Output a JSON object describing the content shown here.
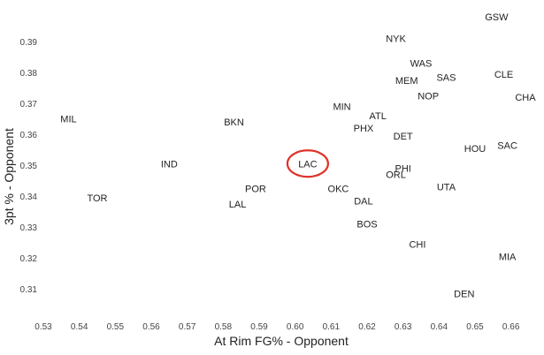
{
  "chart_data": {
    "type": "scatter",
    "xlabel": "At Rim FG% - Opponent",
    "ylabel": "3pt % - Opponent",
    "xlim": [
      0.53,
      0.665
    ],
    "ylim": [
      0.302,
      0.402
    ],
    "grid": false,
    "x_ticks": [
      "0.53",
      "0.54",
      "0.55",
      "0.56",
      "0.57",
      "0.58",
      "0.59",
      "0.60",
      "0.61",
      "0.62",
      "0.63",
      "0.64",
      "0.65",
      "0.66"
    ],
    "y_ticks": [
      "0.31",
      "0.32",
      "0.33",
      "0.34",
      "0.35",
      "0.36",
      "0.37",
      "0.38",
      "0.39"
    ],
    "highlight": {
      "label": "LAC",
      "color": "#e0332a"
    },
    "points": [
      {
        "label": "GSW",
        "x": 0.656,
        "y": 0.398
      },
      {
        "label": "NYK",
        "x": 0.628,
        "y": 0.391
      },
      {
        "label": "WAS",
        "x": 0.635,
        "y": 0.383
      },
      {
        "label": "SAS",
        "x": 0.642,
        "y": 0.3785
      },
      {
        "label": "CLE",
        "x": 0.658,
        "y": 0.3795
      },
      {
        "label": "MEM",
        "x": 0.631,
        "y": 0.3775
      },
      {
        "label": "NOP",
        "x": 0.637,
        "y": 0.3725
      },
      {
        "label": "CHA",
        "x": 0.664,
        "y": 0.372
      },
      {
        "label": "MIN",
        "x": 0.613,
        "y": 0.369
      },
      {
        "label": "ATL",
        "x": 0.623,
        "y": 0.366
      },
      {
        "label": "MIL",
        "x": 0.537,
        "y": 0.365
      },
      {
        "label": "BKN",
        "x": 0.583,
        "y": 0.364
      },
      {
        "label": "PHX",
        "x": 0.619,
        "y": 0.362
      },
      {
        "label": "DET",
        "x": 0.63,
        "y": 0.3595
      },
      {
        "label": "HOU",
        "x": 0.65,
        "y": 0.3555
      },
      {
        "label": "SAC",
        "x": 0.659,
        "y": 0.3565
      },
      {
        "label": "LAC",
        "x": 0.6035,
        "y": 0.3505
      },
      {
        "label": "IND",
        "x": 0.565,
        "y": 0.3505
      },
      {
        "label": "PHI",
        "x": 0.63,
        "y": 0.349
      },
      {
        "label": "ORL",
        "x": 0.628,
        "y": 0.347
      },
      {
        "label": "UTA",
        "x": 0.642,
        "y": 0.343
      },
      {
        "label": "POR",
        "x": 0.589,
        "y": 0.3425
      },
      {
        "label": "OKC",
        "x": 0.612,
        "y": 0.3425
      },
      {
        "label": "TOR",
        "x": 0.545,
        "y": 0.3395
      },
      {
        "label": "DAL",
        "x": 0.619,
        "y": 0.3385
      },
      {
        "label": "LAL",
        "x": 0.584,
        "y": 0.3375
      },
      {
        "label": "BOS",
        "x": 0.62,
        "y": 0.331
      },
      {
        "label": "CHI",
        "x": 0.634,
        "y": 0.3245
      },
      {
        "label": "MIA",
        "x": 0.659,
        "y": 0.3205
      },
      {
        "label": "DEN",
        "x": 0.647,
        "y": 0.3085
      }
    ]
  }
}
